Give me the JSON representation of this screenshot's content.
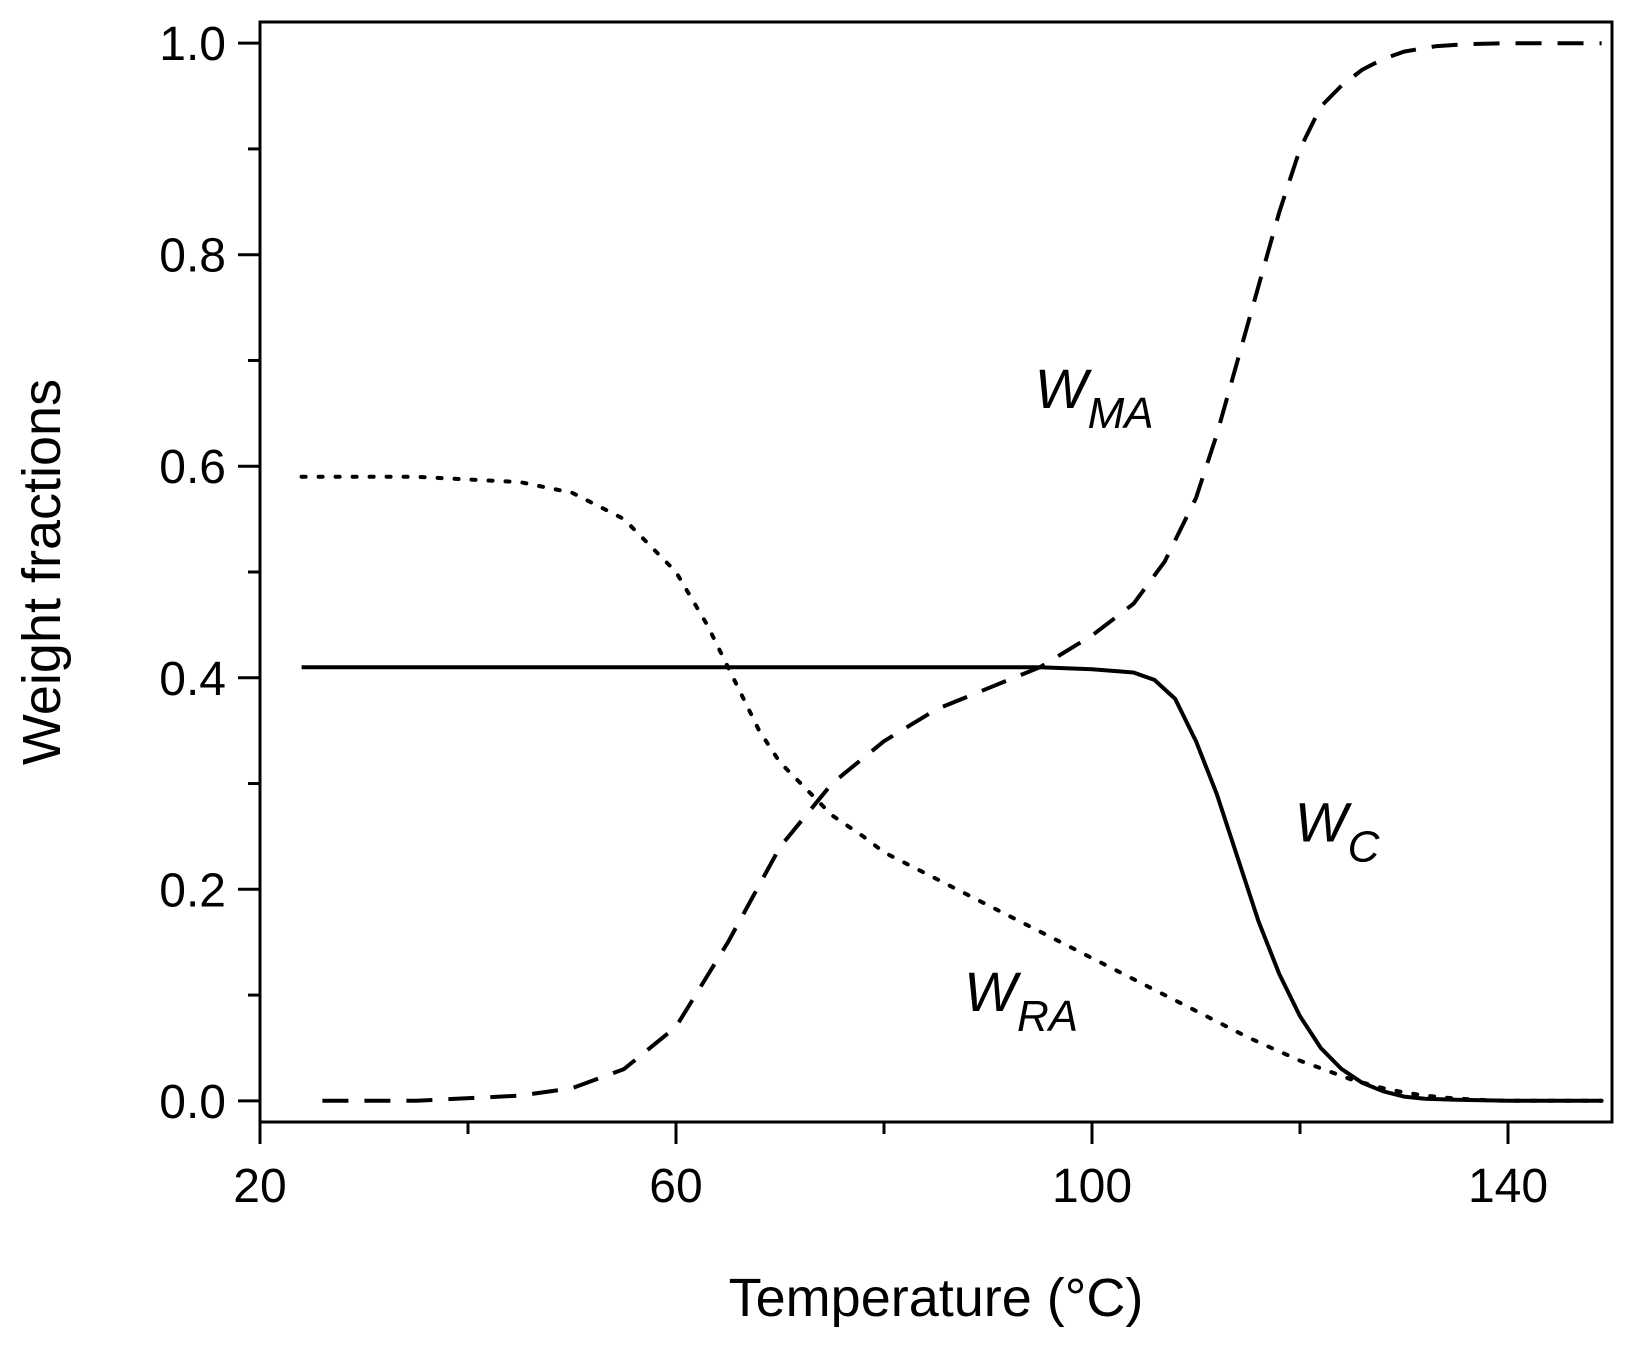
{
  "chart_data": {
    "type": "line",
    "title": "",
    "xlabel": "Temperature (°C)",
    "ylabel": "Weight fractions",
    "xlim": [
      20,
      150
    ],
    "ylim": [
      -0.02,
      1.02
    ],
    "x_ticks": [
      20,
      60,
      100,
      140
    ],
    "x_minor_ticks": [
      40,
      80,
      120
    ],
    "y_ticks": [
      0.0,
      0.2,
      0.4,
      0.6,
      0.8,
      1.0
    ],
    "y_tick_labels": [
      "0.0",
      "0.2",
      "0.4",
      "0.6",
      "0.8",
      "1.0"
    ],
    "y_minor_ticks": [
      0.1,
      0.3,
      0.5,
      0.7,
      0.9
    ],
    "grid": false,
    "series": [
      {
        "name": "W_C",
        "label_main": "W",
        "label_sub": "C",
        "style": "solid",
        "color": "#000000",
        "x": [
          24,
          40,
          60,
          80,
          95,
          100,
          104,
          106,
          108,
          110,
          112,
          114,
          116,
          118,
          120,
          122,
          124,
          126,
          128,
          130,
          132,
          135,
          140,
          149
        ],
        "y": [
          0.41,
          0.41,
          0.41,
          0.41,
          0.41,
          0.408,
          0.405,
          0.398,
          0.38,
          0.34,
          0.29,
          0.23,
          0.17,
          0.12,
          0.08,
          0.05,
          0.03,
          0.017,
          0.009,
          0.004,
          0.002,
          0.001,
          0.0,
          0.0
        ]
      },
      {
        "name": "W_MA",
        "label_main": "W",
        "label_sub": "MA",
        "style": "dashed",
        "color": "#000000",
        "x": [
          26,
          35,
          45,
          50,
          55,
          60,
          65,
          70,
          75,
          80,
          85,
          90,
          95,
          100,
          104,
          107,
          110,
          112,
          114,
          116,
          118,
          120,
          122,
          124,
          126,
          128,
          130,
          133,
          136,
          140,
          149
        ],
        "y": [
          0.0,
          0.0,
          0.005,
          0.012,
          0.03,
          0.07,
          0.15,
          0.24,
          0.3,
          0.34,
          0.37,
          0.39,
          0.41,
          0.44,
          0.47,
          0.51,
          0.57,
          0.63,
          0.7,
          0.77,
          0.84,
          0.9,
          0.94,
          0.96,
          0.975,
          0.985,
          0.992,
          0.997,
          0.999,
          1.0,
          1.0
        ]
      },
      {
        "name": "W_RA",
        "label_main": "W",
        "label_sub": "RA",
        "style": "dotted",
        "color": "#000000",
        "x": [
          24,
          35,
          45,
          50,
          55,
          60,
          63,
          66,
          68,
          70,
          72,
          75,
          78,
          80,
          85,
          90,
          95,
          100,
          105,
          110,
          115,
          120,
          125,
          128,
          130,
          132,
          134,
          137,
          140,
          149
        ],
        "y": [
          0.59,
          0.59,
          0.585,
          0.575,
          0.55,
          0.5,
          0.45,
          0.39,
          0.35,
          0.32,
          0.3,
          0.27,
          0.25,
          0.235,
          0.21,
          0.185,
          0.16,
          0.135,
          0.11,
          0.085,
          0.06,
          0.038,
          0.02,
          0.012,
          0.008,
          0.005,
          0.003,
          0.001,
          0.0,
          0.0
        ]
      }
    ],
    "annotations": [
      "W_MA near x=100",
      "W_C near x=122",
      "W_RA near x=92"
    ]
  }
}
